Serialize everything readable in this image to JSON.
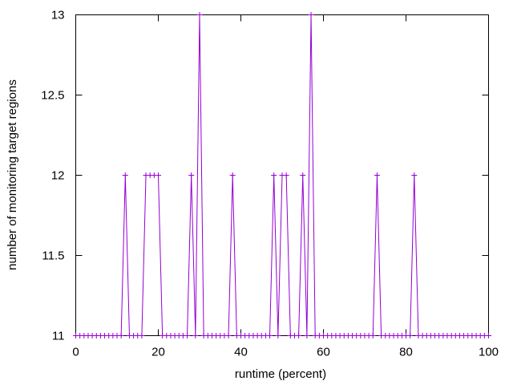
{
  "chart_data": {
    "type": "line",
    "title": "",
    "xlabel": "runtime (percent)",
    "ylabel": "number of monitoring target regions",
    "xlim": [
      0,
      100
    ],
    "ylim": [
      11,
      13
    ],
    "x_ticks": [
      "0",
      "20",
      "40",
      "60",
      "80",
      "100"
    ],
    "y_ticks": [
      "11",
      "11.5",
      "12",
      "12.5",
      "13"
    ],
    "grid": false,
    "legend": "none",
    "series": [
      {
        "color": "#9400d3",
        "marker": "plus",
        "x": [
          0,
          1,
          2,
          3,
          4,
          5,
          6,
          7,
          8,
          9,
          10,
          11,
          12,
          13,
          14,
          15,
          16,
          17,
          18,
          19,
          20,
          21,
          22,
          23,
          24,
          25,
          26,
          27,
          28,
          29,
          30,
          31,
          32,
          33,
          34,
          35,
          36,
          37,
          38,
          39,
          40,
          41,
          42,
          43,
          44,
          45,
          46,
          47,
          48,
          49,
          50,
          51,
          52,
          53,
          54,
          55,
          56,
          57,
          58,
          59,
          60,
          61,
          62,
          63,
          64,
          65,
          66,
          67,
          68,
          69,
          70,
          71,
          72,
          73,
          74,
          75,
          76,
          77,
          78,
          79,
          80,
          81,
          82,
          83,
          84,
          85,
          86,
          87,
          88,
          89,
          90,
          91,
          92,
          93,
          94,
          95,
          96,
          97,
          98,
          99,
          100
        ],
        "values": [
          11,
          11,
          11,
          11,
          11,
          11,
          11,
          11,
          11,
          11,
          11,
          11,
          12,
          11,
          11,
          11,
          11,
          12,
          12,
          12,
          12,
          11,
          11,
          11,
          11,
          11,
          11,
          11,
          12,
          11,
          13,
          11,
          11,
          11,
          11,
          11,
          11,
          11,
          12,
          11,
          11,
          11,
          11,
          11,
          11,
          11,
          11,
          11,
          12,
          11,
          12,
          12,
          11,
          11,
          11,
          12,
          11,
          13,
          11,
          11,
          11,
          11,
          11,
          11,
          11,
          11,
          11,
          11,
          11,
          11,
          11,
          11,
          11,
          12,
          11,
          11,
          11,
          11,
          11,
          11,
          11,
          11,
          12,
          11,
          11,
          11,
          11,
          11,
          11,
          11,
          11,
          11,
          11,
          11,
          11,
          11,
          11,
          11,
          11,
          11,
          11
        ]
      }
    ]
  }
}
